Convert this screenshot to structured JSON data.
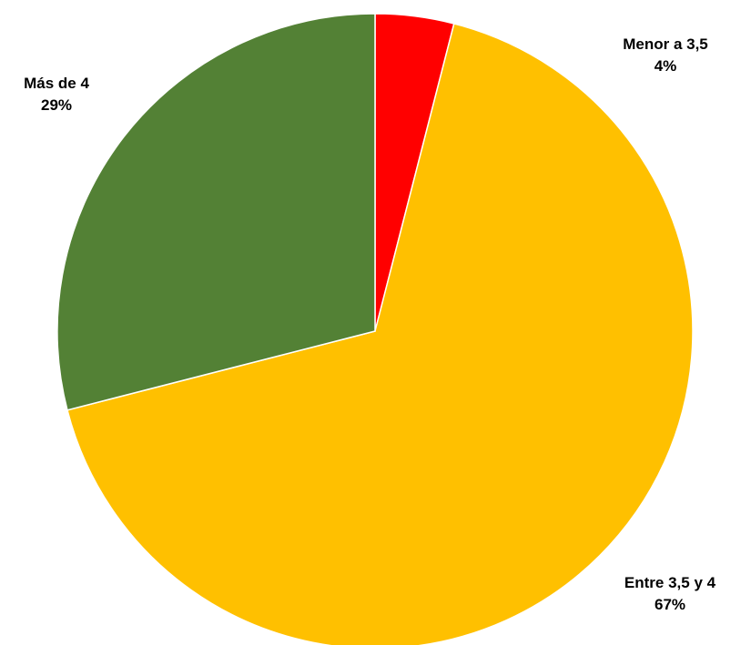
{
  "chart_data": {
    "type": "pie",
    "title": "",
    "start_angle_deg": 90,
    "direction": "clockwise",
    "legend": "none",
    "slices": [
      {
        "label": "Menor a 3,5",
        "value": 4,
        "percent_label": "4%",
        "color": "#FF0000"
      },
      {
        "label": "Entre 3,5 y 4",
        "value": 67,
        "percent_label": "67%",
        "color": "#FFC000"
      },
      {
        "label": "Más de 4",
        "value": 29,
        "percent_label": "29%",
        "color": "#538135"
      }
    ]
  }
}
